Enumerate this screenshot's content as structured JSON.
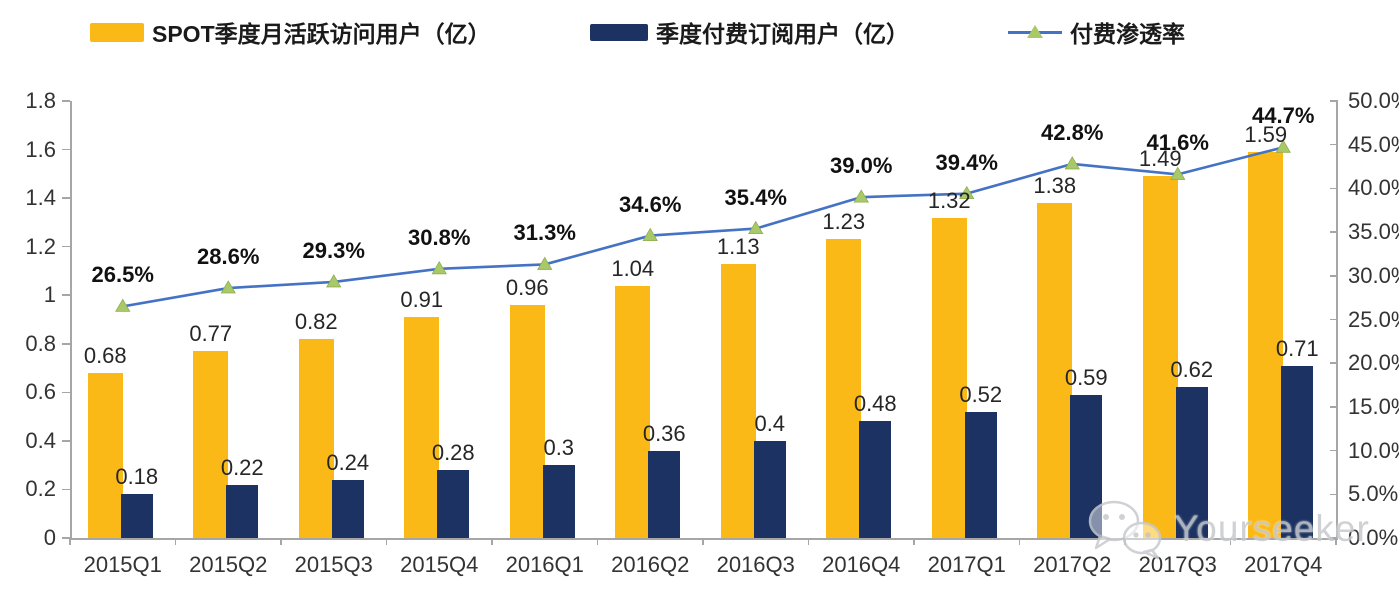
{
  "legend": {
    "mau_label": "SPOT季度月活跃访问用户（亿）",
    "subs_label": "季度付费订阅用户（亿）",
    "penetration_label": "付费渗透率"
  },
  "watermark": {
    "text": "Yourseeker",
    "icon": "wechat-icon"
  },
  "colors": {
    "mau_bar": "#FBB917",
    "subs_bar": "#1B3262",
    "line": "#4472C4",
    "marker": "#A9C868",
    "axis": "#A6A6A6",
    "label_text": "#262626"
  },
  "chart_data": {
    "type": "bar",
    "subtype": "grouped-bars-with-line",
    "categories": [
      "2015Q1",
      "2015Q2",
      "2015Q3",
      "2015Q4",
      "2016Q1",
      "2016Q2",
      "2016Q3",
      "2016Q4",
      "2017Q1",
      "2017Q2",
      "2017Q3",
      "2017Q4"
    ],
    "series": [
      {
        "name": "SPOT季度月活跃访问用户（亿）",
        "type": "bar",
        "axis": "left",
        "color": "#FBB917",
        "values": [
          0.68,
          0.77,
          0.82,
          0.91,
          0.96,
          1.04,
          1.13,
          1.23,
          1.32,
          1.38,
          1.49,
          1.59
        ],
        "labels": [
          "0.68",
          "0.77",
          "0.82",
          "0.91",
          "0.96",
          "1.04",
          "1.13",
          "1.23",
          "1.32",
          "1.38",
          "1.49",
          "1.59"
        ]
      },
      {
        "name": "季度付费订阅用户（亿）",
        "type": "bar",
        "axis": "left",
        "color": "#1B3262",
        "values": [
          0.18,
          0.22,
          0.24,
          0.28,
          0.3,
          0.36,
          0.4,
          0.48,
          0.52,
          0.59,
          0.62,
          0.71
        ],
        "labels": [
          "0.18",
          "0.22",
          "0.24",
          "0.28",
          "0.3",
          "0.36",
          "0.4",
          "0.48",
          "0.52",
          "0.59",
          "0.62",
          "0.71"
        ]
      },
      {
        "name": "付费渗透率",
        "type": "line",
        "axis": "right",
        "color": "#4472C4",
        "marker": "triangle-up",
        "marker_color": "#A9C868",
        "values": [
          26.5,
          28.6,
          29.3,
          30.8,
          31.3,
          34.6,
          35.4,
          39.0,
          39.4,
          42.8,
          41.6,
          44.7
        ],
        "labels": [
          "26.5%",
          "28.6%",
          "29.3%",
          "30.8%",
          "31.3%",
          "34.6%",
          "35.4%",
          "39.0%",
          "39.4%",
          "42.8%",
          "41.6%",
          "44.7%"
        ]
      }
    ],
    "left_axis": {
      "min": 0,
      "max": 1.8,
      "step": 0.2,
      "tick_values": [
        0,
        0.2,
        0.4,
        0.6,
        0.8,
        1,
        1.2,
        1.4,
        1.6,
        1.8
      ],
      "tick_labels": [
        "0",
        "0.2",
        "0.4",
        "0.6",
        "0.8",
        "1",
        "1.2",
        "1.4",
        "1.6",
        "1.8"
      ]
    },
    "right_axis": {
      "min": 0,
      "max": 50,
      "step": 5,
      "unit": "%",
      "tick_values": [
        0,
        5,
        10,
        15,
        20,
        25,
        30,
        35,
        40,
        45,
        50
      ],
      "tick_labels": [
        "0.0%",
        "5.0%",
        "10.0%",
        "15.0%",
        "20.0%",
        "25.0%",
        "30.0%",
        "35.0%",
        "40.0%",
        "45.0%",
        "50.0%"
      ]
    },
    "grid": false,
    "legend_position": "top"
  }
}
